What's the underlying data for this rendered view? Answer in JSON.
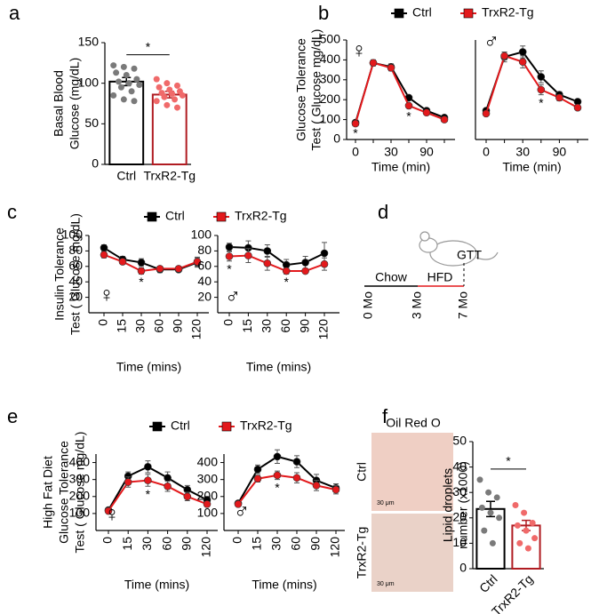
{
  "panel_labels": [
    "a",
    "b",
    "c",
    "d",
    "e",
    "f"
  ],
  "chart_data": [
    {
      "type": "bar",
      "ylabel": [
        "Basal Blood",
        "Glucose (mg/dL)"
      ],
      "categories": [
        "Ctrl",
        "TrxR2-Tg"
      ],
      "values": [
        102,
        86
      ],
      "errors": [
        5,
        4
      ],
      "colors": [
        "#000000",
        "#b01c22"
      ],
      "point_colors": [
        "#7a7a7a",
        "#f06a6a"
      ],
      "points": [
        [
          122,
          120,
          118,
          113,
          110,
          105,
          102,
          100,
          98,
          95,
          90,
          85,
          80,
          78
        ],
        [
          105,
          100,
          97,
          95,
          92,
          90,
          88,
          87,
          85,
          83,
          80,
          78,
          73,
          70
        ]
      ],
      "ylim": [
        0,
        150
      ],
      "yticks": [
        0,
        50,
        100,
        150
      ],
      "significance": "*"
    },
    {
      "type": "line",
      "ylabel": [
        "Glucose Tolerance",
        "Test ( Glucose mg/dL)"
      ],
      "series": [
        {
          "name": "Ctrl",
          "color": "#000000"
        },
        {
          "name": "TrxR2-Tg",
          "color": "#e3191c"
        }
      ],
      "panels": [
        {
          "symbol": "♀",
          "xlabel": "Time (min)",
          "categories": [
            "0",
            null,
            "30",
            null,
            "90",
            null
          ],
          "ylim": [
            0,
            500
          ],
          "yticks": [
            0,
            100,
            200,
            300,
            400,
            500
          ],
          "values": [
            [
              85,
              385,
              365,
              210,
              145,
              110
            ],
            [
              80,
              385,
              360,
              170,
              135,
              100
            ]
          ],
          "errors": [
            [
              8,
              15,
              15,
              10,
              8,
              8
            ],
            [
              8,
              15,
              15,
              12,
              8,
              8
            ]
          ],
          "annotations": [
            {
              "text": "*",
              "at": 0
            },
            {
              "text": "*",
              "at": 3
            }
          ]
        },
        {
          "symbol": "♂",
          "xlabel": "Time (min)",
          "categories": [
            "0",
            null,
            "30",
            null,
            "90",
            null
          ],
          "ylim": [
            0,
            500
          ],
          "values": [
            [
              145,
              415,
              440,
              315,
              225,
              190
            ],
            [
              130,
              420,
              390,
              250,
              210,
              160
            ]
          ],
          "errors": [
            [
              10,
              25,
              30,
              30,
              15,
              10
            ],
            [
              10,
              20,
              30,
              25,
              15,
              10
            ]
          ],
          "annotations": [
            {
              "text": "*",
              "at": 3
            }
          ]
        }
      ]
    },
    {
      "type": "line",
      "ylabel": [
        "Insulin Tolerance",
        "Test ( Glucose mg/dL)"
      ],
      "series": [
        {
          "name": "Ctrl",
          "color": "#000000"
        },
        {
          "name": "TrxR2-Tg",
          "color": "#e3191c"
        }
      ],
      "panels": [
        {
          "symbol": "♀",
          "xlabel": "Time (mins)",
          "categories": [
            "0",
            "15",
            "30",
            "60",
            "90",
            "120"
          ],
          "ylim": [
            0,
            100
          ],
          "yticks": [
            20,
            40,
            60,
            80,
            100
          ],
          "values": [
            [
              84,
              69,
              65,
              56,
              56,
              65
            ],
            [
              75,
              66,
              54,
              57,
              57,
              66
            ]
          ],
          "errors": [
            [
              4,
              4,
              5,
              4,
              3,
              6
            ],
            [
              4,
              3,
              4,
              3,
              3,
              6
            ]
          ],
          "annotations": [
            {
              "text": "*",
              "at": 2
            }
          ]
        },
        {
          "symbol": "♂",
          "xlabel": "Time (mins)",
          "categories": [
            "0",
            "15",
            "30",
            "60",
            "90",
            "120"
          ],
          "ylim": [
            0,
            100
          ],
          "yticks": [
            20,
            40,
            60,
            80,
            100
          ],
          "values": [
            [
              85,
              84,
              80,
              62,
              65,
              77
            ],
            [
              73,
              74,
              64,
              54,
              54,
              63
            ]
          ],
          "errors": [
            [
              5,
              9,
              8,
              7,
              8,
              14
            ],
            [
              6,
              9,
              9,
              4,
              3,
              8
            ]
          ],
          "annotations": [
            {
              "text": "*",
              "at": 0
            },
            {
              "text": "*",
              "at": 3
            }
          ]
        }
      ]
    },
    {
      "type": "line",
      "ylabel": [
        "High Fat Diet",
        "Glucose Tolerance",
        "Test ( Glucose mg/dL)"
      ],
      "series": [
        {
          "name": "Ctrl",
          "color": "#000000"
        },
        {
          "name": "TrxR2-Tg",
          "color": "#e3191c"
        }
      ],
      "panels": [
        {
          "symbol": "♀",
          "xlabel": "Time (mins)",
          "categories": [
            "0",
            "15",
            "30",
            "60",
            "90",
            "120"
          ],
          "ylim": [
            0,
            450
          ],
          "yticks": [
            100,
            200,
            300,
            400
          ],
          "values": [
            [
              120,
              320,
              375,
              310,
              240,
              180
            ],
            [
              115,
              285,
              295,
              260,
              200,
              155
            ]
          ],
          "errors": [
            [
              10,
              25,
              35,
              35,
              25,
              20
            ],
            [
              10,
              30,
              35,
              30,
              25,
              15
            ]
          ],
          "annotations": [
            {
              "text": "*",
              "at": 2
            }
          ]
        },
        {
          "symbol": "♂",
          "xlabel": "Time (mins)",
          "categories": [
            "0",
            "15",
            "30",
            "60",
            "90",
            "120"
          ],
          "ylim": [
            0,
            450
          ],
          "yticks": [
            100,
            200,
            300,
            400
          ],
          "values": [
            [
              160,
              360,
              435,
              405,
              295,
              250
            ],
            [
              155,
              305,
              325,
              310,
              265,
              240
            ]
          ],
          "errors": [
            [
              10,
              25,
              40,
              35,
              35,
              25
            ],
            [
              10,
              20,
              25,
              30,
              30,
              25
            ]
          ],
          "annotations": [
            {
              "text": "*",
              "at": 2
            }
          ]
        }
      ]
    },
    {
      "type": "bar",
      "ylabel": [
        "Lipid droplets",
        "number (x1000)"
      ],
      "categories": [
        "Ctrl",
        "TrxR2-Tg"
      ],
      "values": [
        23.5,
        17
      ],
      "errors": [
        3,
        2
      ],
      "colors": [
        "#000000",
        "#b01c22"
      ],
      "point_colors": [
        "#7a7a7a",
        "#f06a6a"
      ],
      "points": [
        [
          35,
          30,
          28,
          24,
          22,
          20,
          15,
          10
        ],
        [
          25,
          22,
          18,
          17,
          15,
          12,
          10,
          8
        ]
      ],
      "ylim": [
        0,
        50
      ],
      "yticks": [
        0,
        10,
        20,
        30,
        40,
        50
      ],
      "significance": "*"
    }
  ],
  "diagram": {
    "chow": "Chow",
    "hfd": "HFD",
    "endpoint": "GTT",
    "timepoints": [
      "0 Mo",
      "3 Mo",
      "7 Mo"
    ]
  },
  "histology": {
    "stain": "Oil Red O",
    "rows": [
      "Ctrl",
      "TrxR2-Tg"
    ],
    "scale_bar": "30 μm"
  }
}
